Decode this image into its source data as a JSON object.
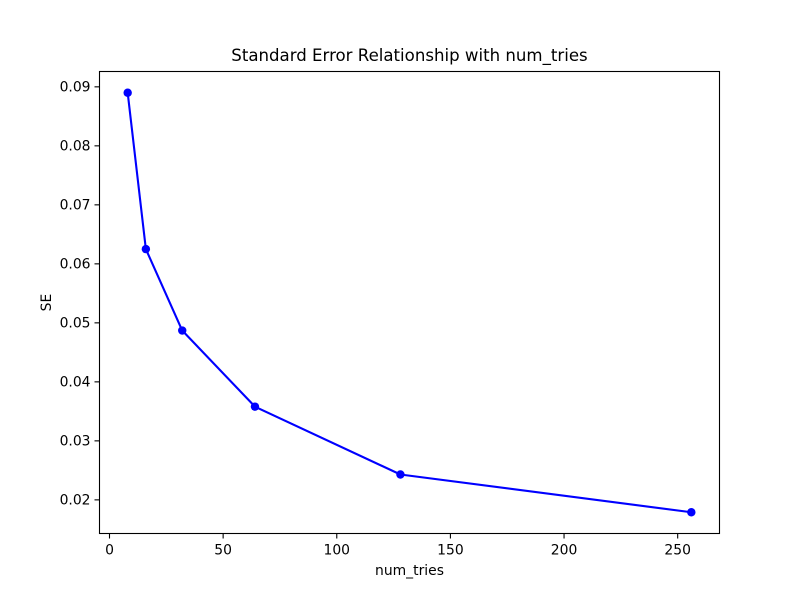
{
  "figure": {
    "background": "#ffffff",
    "axes_background": "#ffffff",
    "spine_color": "#000000"
  },
  "chart_data": {
    "type": "line",
    "title": "Standard Error Relationship with num_tries",
    "xlabel": "num_tries",
    "ylabel": "SE",
    "x": [
      8,
      16,
      32,
      64,
      128,
      256
    ],
    "y": [
      0.089,
      0.0625,
      0.0487,
      0.0358,
      0.0243,
      0.0179
    ],
    "series": [
      {
        "name": "SE",
        "x": [
          8,
          16,
          32,
          64,
          128,
          256
        ],
        "values": [
          0.089,
          0.0625,
          0.0487,
          0.0358,
          0.0243,
          0.0179
        ]
      }
    ],
    "xlim": [
      -4.4,
      268.4
    ],
    "ylim": [
      0.0143,
      0.0926
    ],
    "xticks": [
      0,
      50,
      100,
      150,
      200,
      250
    ],
    "yticks": [
      0.02,
      0.03,
      0.04,
      0.05,
      0.06,
      0.07,
      0.08,
      0.09
    ],
    "ytick_decimals": 2,
    "line_color": "#0000ff",
    "line_width": 2.1,
    "marker": "o",
    "marker_color": "#0000ff",
    "marker_radius": 4.2,
    "grid": false,
    "legend_position": "none"
  }
}
